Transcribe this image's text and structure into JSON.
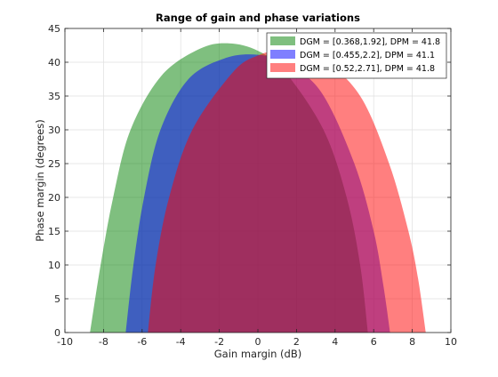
{
  "chart_data": {
    "type": "area",
    "title": "Range of gain and phase variations",
    "xlabel": "Gain margin (dB)",
    "ylabel": "Phase margin (degrees)",
    "xlim": [
      -10,
      10
    ],
    "ylim": [
      0,
      45
    ],
    "xticks": [
      -10,
      -8,
      -6,
      -4,
      -2,
      0,
      2,
      4,
      6,
      8,
      10
    ],
    "yticks": [
      0,
      5,
      10,
      15,
      20,
      25,
      30,
      35,
      40,
      45
    ],
    "grid": true,
    "legend_position": "top-right",
    "series": [
      {
        "name": "DGM = [0.368,1.92], DPM = 41.8",
        "color": "#008000",
        "fill_opacity": 0.5,
        "points": [
          [
            -8.7,
            0
          ],
          [
            -8.15,
            10
          ],
          [
            -7.5,
            20
          ],
          [
            -6.6,
            30
          ],
          [
            -5.0,
            38
          ],
          [
            -3.0,
            42
          ],
          [
            -1.5,
            42.8
          ],
          [
            0.0,
            41.7
          ],
          [
            1.4,
            38.6
          ],
          [
            3.4,
            30
          ],
          [
            4.6,
            20
          ],
          [
            5.3,
            10
          ],
          [
            5.7,
            0
          ]
        ]
      },
      {
        "name": "DGM = [0.455,2.2], DPM = 41.1",
        "color": "#0000ff",
        "fill_opacity": 0.5,
        "points": [
          [
            -6.85,
            0
          ],
          [
            -6.45,
            10
          ],
          [
            -5.9,
            20
          ],
          [
            -5.05,
            30
          ],
          [
            -3.6,
            37.5
          ],
          [
            -1.7,
            40.6
          ],
          [
            0.0,
            41.1
          ],
          [
            1.5,
            39.8
          ],
          [
            3.3,
            35.5
          ],
          [
            5.0,
            25
          ],
          [
            6.0,
            15
          ],
          [
            6.5,
            7
          ],
          [
            6.85,
            0
          ]
        ]
      },
      {
        "name": "DGM = [0.52,2.71], DPM = 41.8",
        "color": "#ff0000",
        "fill_opacity": 0.5,
        "points": [
          [
            -5.7,
            0
          ],
          [
            -5.3,
            10
          ],
          [
            -4.6,
            20
          ],
          [
            -3.4,
            30
          ],
          [
            -1.3,
            38.5
          ],
          [
            0.0,
            41.0
          ],
          [
            1.4,
            41.8
          ],
          [
            3.3,
            40.5
          ],
          [
            5.3,
            35
          ],
          [
            6.8,
            25
          ],
          [
            7.8,
            15
          ],
          [
            8.3,
            8
          ],
          [
            8.7,
            0
          ]
        ]
      }
    ]
  }
}
